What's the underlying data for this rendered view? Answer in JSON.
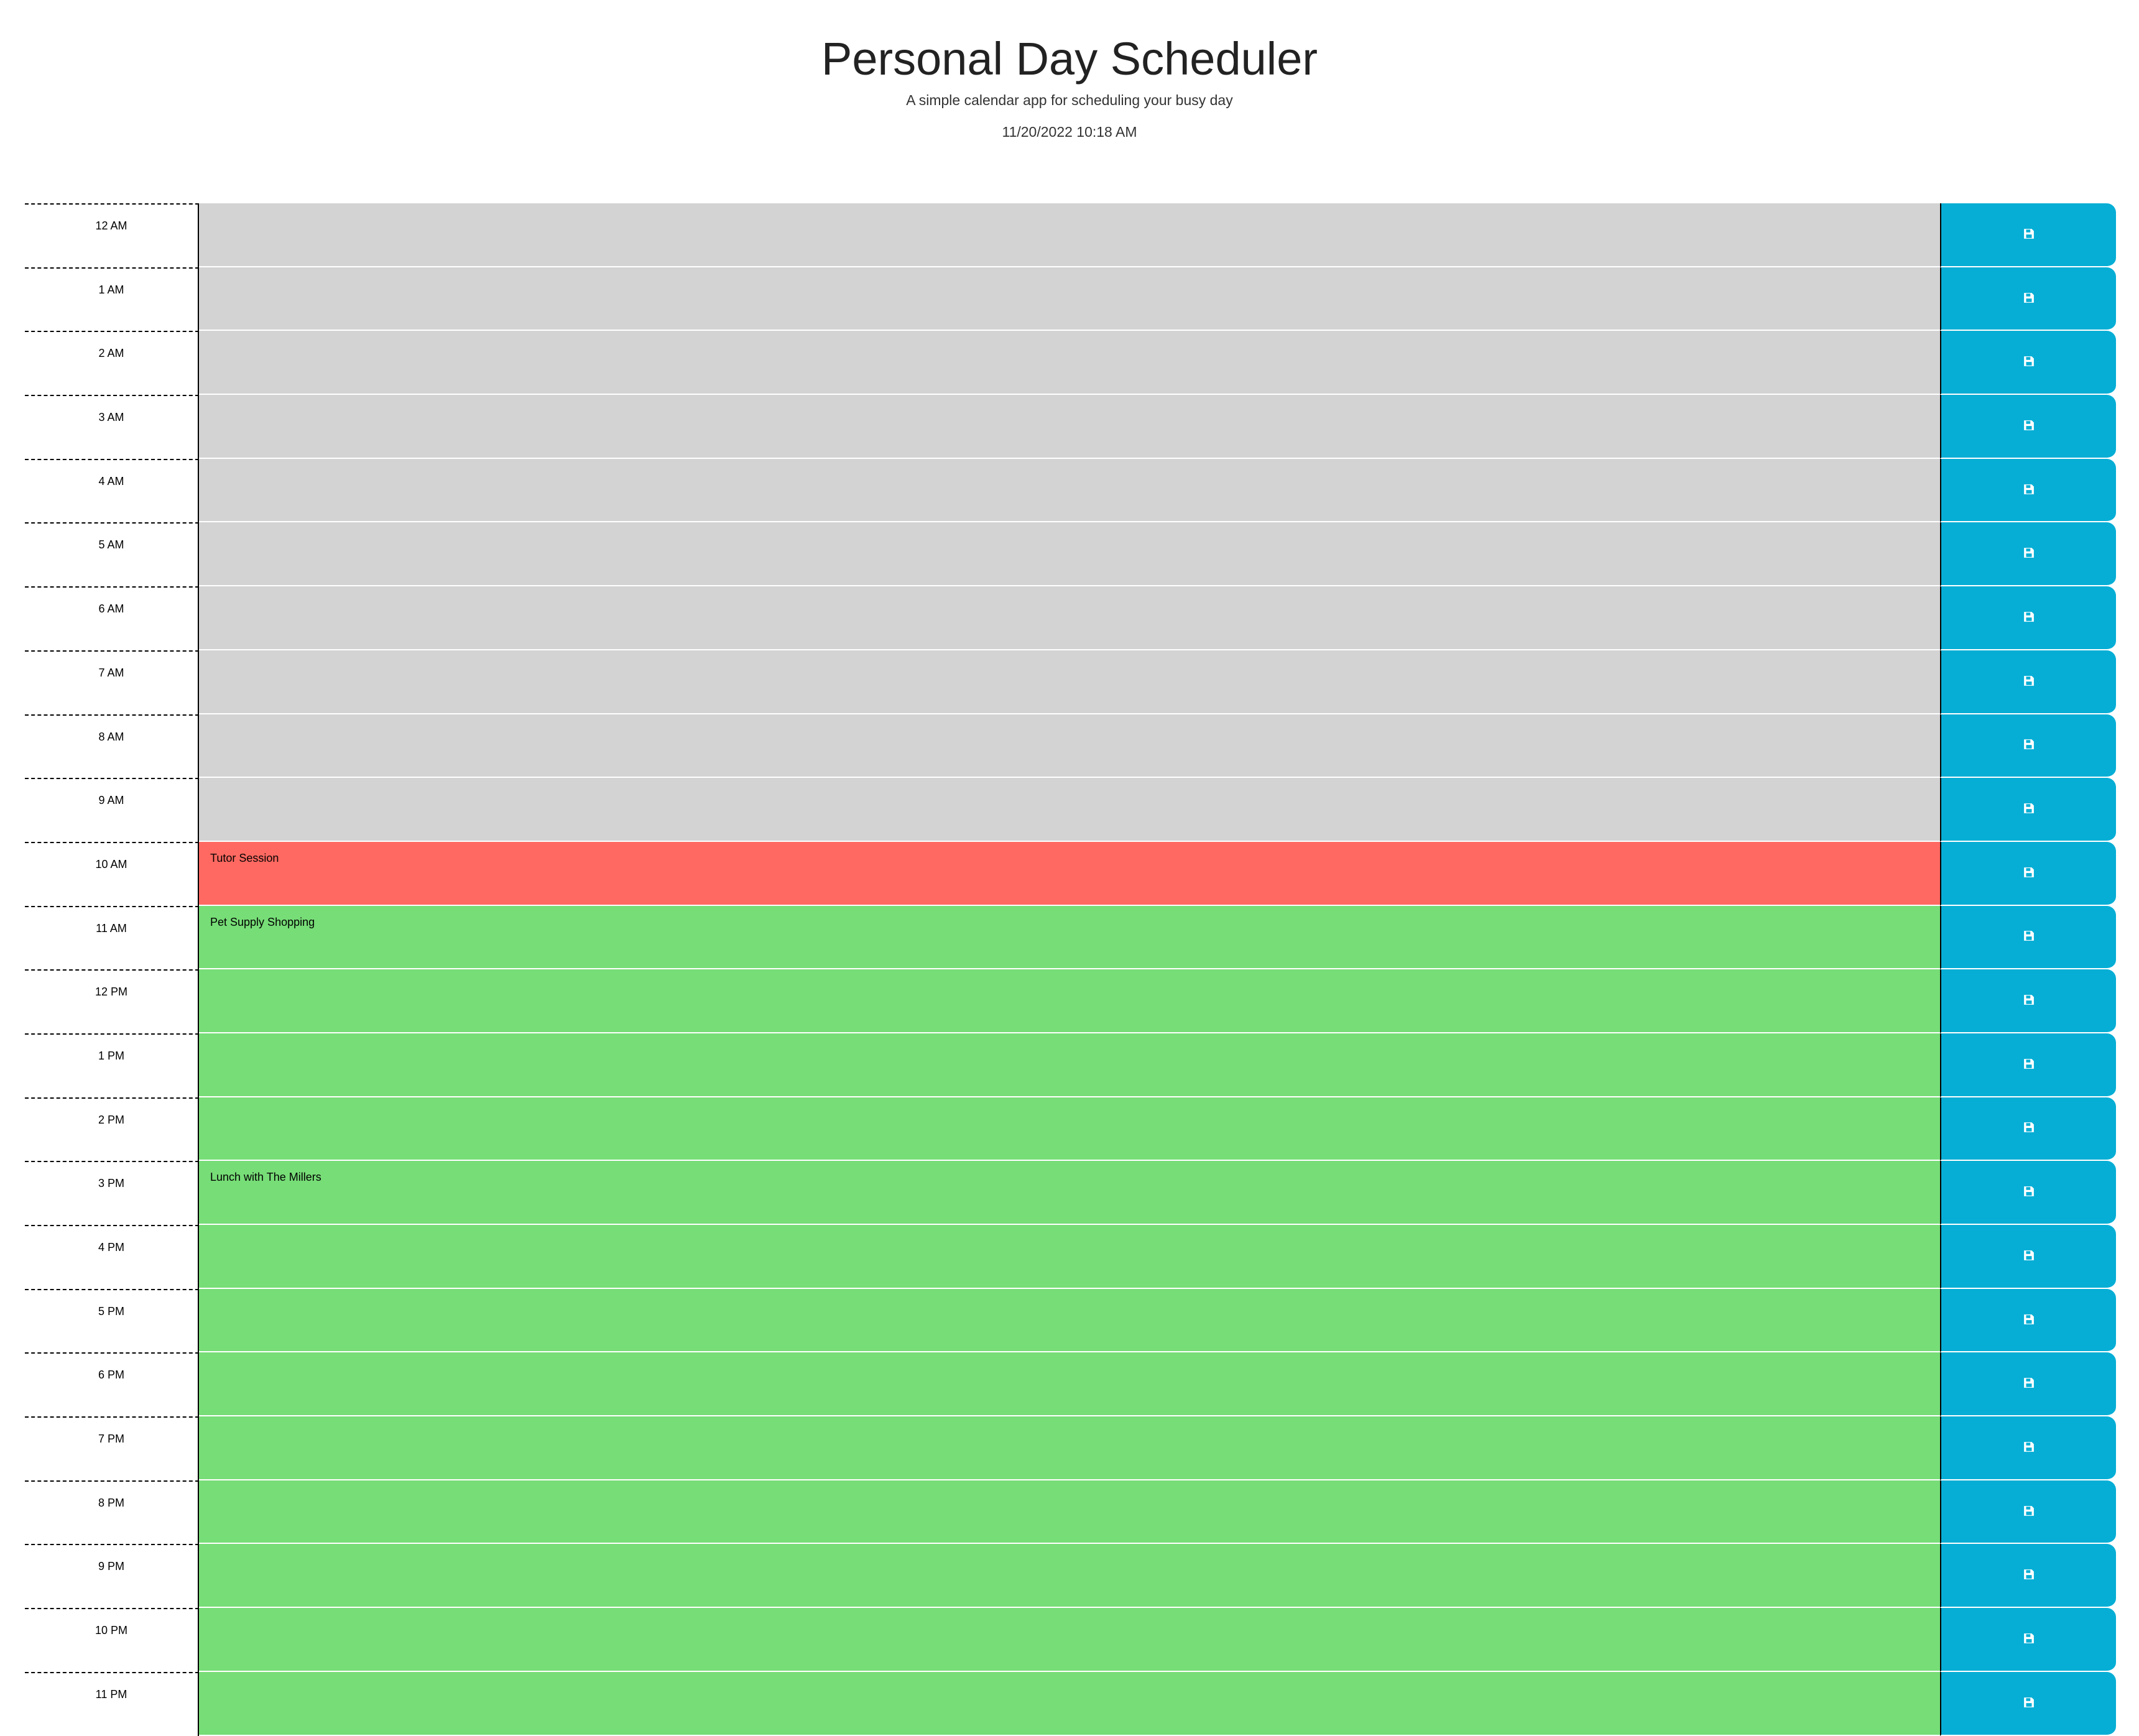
{
  "header": {
    "title": "Personal Day Scheduler",
    "subtitle": "A simple calendar app for scheduling your busy day",
    "current_day": "11/20/2022 10:18 AM"
  },
  "colors": {
    "past": "#d3d3d3",
    "present": "#ff6961",
    "future": "#77dd77",
    "save_button": "#06aed5"
  },
  "save_icon": "floppy-disk-icon",
  "time_blocks": [
    {
      "hour": "12 AM",
      "text": "",
      "state": "past"
    },
    {
      "hour": "1 AM",
      "text": "",
      "state": "past"
    },
    {
      "hour": "2 AM",
      "text": "",
      "state": "past"
    },
    {
      "hour": "3 AM",
      "text": "",
      "state": "past"
    },
    {
      "hour": "4 AM",
      "text": "",
      "state": "past"
    },
    {
      "hour": "5 AM",
      "text": "",
      "state": "past"
    },
    {
      "hour": "6 AM",
      "text": "",
      "state": "past"
    },
    {
      "hour": "7 AM",
      "text": "",
      "state": "past"
    },
    {
      "hour": "8 AM",
      "text": "",
      "state": "past"
    },
    {
      "hour": "9 AM",
      "text": "",
      "state": "past"
    },
    {
      "hour": "10 AM",
      "text": "Tutor Session",
      "state": "present"
    },
    {
      "hour": "11 AM",
      "text": "Pet Supply Shopping",
      "state": "future"
    },
    {
      "hour": "12 PM",
      "text": "",
      "state": "future"
    },
    {
      "hour": "1 PM",
      "text": "",
      "state": "future"
    },
    {
      "hour": "2 PM",
      "text": "",
      "state": "future"
    },
    {
      "hour": "3 PM",
      "text": "Lunch with The Millers",
      "state": "future"
    },
    {
      "hour": "4 PM",
      "text": "",
      "state": "future"
    },
    {
      "hour": "5 PM",
      "text": "",
      "state": "future"
    },
    {
      "hour": "6 PM",
      "text": "",
      "state": "future"
    },
    {
      "hour": "7 PM",
      "text": "",
      "state": "future"
    },
    {
      "hour": "8 PM",
      "text": "",
      "state": "future"
    },
    {
      "hour": "9 PM",
      "text": "",
      "state": "future"
    },
    {
      "hour": "10 PM",
      "text": "",
      "state": "future"
    },
    {
      "hour": "11 PM",
      "text": "",
      "state": "future"
    }
  ]
}
